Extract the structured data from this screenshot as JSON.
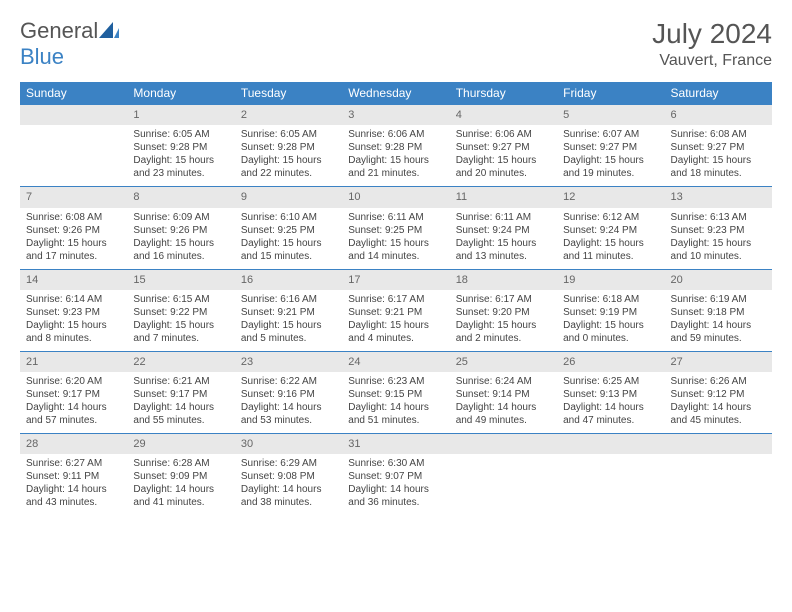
{
  "brand": {
    "name_part1": "General",
    "name_part2": "Blue"
  },
  "title": "July 2024",
  "location": "Vauvert, France",
  "colors": {
    "header_bg": "#3b82c4",
    "header_text": "#ffffff",
    "daynum_bg": "#e8e8e8",
    "daynum_text": "#666666",
    "body_text": "#444444",
    "rule": "#3b82c4"
  },
  "weekdays": [
    "Sunday",
    "Monday",
    "Tuesday",
    "Wednesday",
    "Thursday",
    "Friday",
    "Saturday"
  ],
  "weeks": [
    [
      null,
      {
        "n": "1",
        "sunrise": "Sunrise: 6:05 AM",
        "sunset": "Sunset: 9:28 PM",
        "day1": "Daylight: 15 hours",
        "day2": "and 23 minutes."
      },
      {
        "n": "2",
        "sunrise": "Sunrise: 6:05 AM",
        "sunset": "Sunset: 9:28 PM",
        "day1": "Daylight: 15 hours",
        "day2": "and 22 minutes."
      },
      {
        "n": "3",
        "sunrise": "Sunrise: 6:06 AM",
        "sunset": "Sunset: 9:28 PM",
        "day1": "Daylight: 15 hours",
        "day2": "and 21 minutes."
      },
      {
        "n": "4",
        "sunrise": "Sunrise: 6:06 AM",
        "sunset": "Sunset: 9:27 PM",
        "day1": "Daylight: 15 hours",
        "day2": "and 20 minutes."
      },
      {
        "n": "5",
        "sunrise": "Sunrise: 6:07 AM",
        "sunset": "Sunset: 9:27 PM",
        "day1": "Daylight: 15 hours",
        "day2": "and 19 minutes."
      },
      {
        "n": "6",
        "sunrise": "Sunrise: 6:08 AM",
        "sunset": "Sunset: 9:27 PM",
        "day1": "Daylight: 15 hours",
        "day2": "and 18 minutes."
      }
    ],
    [
      {
        "n": "7",
        "sunrise": "Sunrise: 6:08 AM",
        "sunset": "Sunset: 9:26 PM",
        "day1": "Daylight: 15 hours",
        "day2": "and 17 minutes."
      },
      {
        "n": "8",
        "sunrise": "Sunrise: 6:09 AM",
        "sunset": "Sunset: 9:26 PM",
        "day1": "Daylight: 15 hours",
        "day2": "and 16 minutes."
      },
      {
        "n": "9",
        "sunrise": "Sunrise: 6:10 AM",
        "sunset": "Sunset: 9:25 PM",
        "day1": "Daylight: 15 hours",
        "day2": "and 15 minutes."
      },
      {
        "n": "10",
        "sunrise": "Sunrise: 6:11 AM",
        "sunset": "Sunset: 9:25 PM",
        "day1": "Daylight: 15 hours",
        "day2": "and 14 minutes."
      },
      {
        "n": "11",
        "sunrise": "Sunrise: 6:11 AM",
        "sunset": "Sunset: 9:24 PM",
        "day1": "Daylight: 15 hours",
        "day2": "and 13 minutes."
      },
      {
        "n": "12",
        "sunrise": "Sunrise: 6:12 AM",
        "sunset": "Sunset: 9:24 PM",
        "day1": "Daylight: 15 hours",
        "day2": "and 11 minutes."
      },
      {
        "n": "13",
        "sunrise": "Sunrise: 6:13 AM",
        "sunset": "Sunset: 9:23 PM",
        "day1": "Daylight: 15 hours",
        "day2": "and 10 minutes."
      }
    ],
    [
      {
        "n": "14",
        "sunrise": "Sunrise: 6:14 AM",
        "sunset": "Sunset: 9:23 PM",
        "day1": "Daylight: 15 hours",
        "day2": "and 8 minutes."
      },
      {
        "n": "15",
        "sunrise": "Sunrise: 6:15 AM",
        "sunset": "Sunset: 9:22 PM",
        "day1": "Daylight: 15 hours",
        "day2": "and 7 minutes."
      },
      {
        "n": "16",
        "sunrise": "Sunrise: 6:16 AM",
        "sunset": "Sunset: 9:21 PM",
        "day1": "Daylight: 15 hours",
        "day2": "and 5 minutes."
      },
      {
        "n": "17",
        "sunrise": "Sunrise: 6:17 AM",
        "sunset": "Sunset: 9:21 PM",
        "day1": "Daylight: 15 hours",
        "day2": "and 4 minutes."
      },
      {
        "n": "18",
        "sunrise": "Sunrise: 6:17 AM",
        "sunset": "Sunset: 9:20 PM",
        "day1": "Daylight: 15 hours",
        "day2": "and 2 minutes."
      },
      {
        "n": "19",
        "sunrise": "Sunrise: 6:18 AM",
        "sunset": "Sunset: 9:19 PM",
        "day1": "Daylight: 15 hours",
        "day2": "and 0 minutes."
      },
      {
        "n": "20",
        "sunrise": "Sunrise: 6:19 AM",
        "sunset": "Sunset: 9:18 PM",
        "day1": "Daylight: 14 hours",
        "day2": "and 59 minutes."
      }
    ],
    [
      {
        "n": "21",
        "sunrise": "Sunrise: 6:20 AM",
        "sunset": "Sunset: 9:17 PM",
        "day1": "Daylight: 14 hours",
        "day2": "and 57 minutes."
      },
      {
        "n": "22",
        "sunrise": "Sunrise: 6:21 AM",
        "sunset": "Sunset: 9:17 PM",
        "day1": "Daylight: 14 hours",
        "day2": "and 55 minutes."
      },
      {
        "n": "23",
        "sunrise": "Sunrise: 6:22 AM",
        "sunset": "Sunset: 9:16 PM",
        "day1": "Daylight: 14 hours",
        "day2": "and 53 minutes."
      },
      {
        "n": "24",
        "sunrise": "Sunrise: 6:23 AM",
        "sunset": "Sunset: 9:15 PM",
        "day1": "Daylight: 14 hours",
        "day2": "and 51 minutes."
      },
      {
        "n": "25",
        "sunrise": "Sunrise: 6:24 AM",
        "sunset": "Sunset: 9:14 PM",
        "day1": "Daylight: 14 hours",
        "day2": "and 49 minutes."
      },
      {
        "n": "26",
        "sunrise": "Sunrise: 6:25 AM",
        "sunset": "Sunset: 9:13 PM",
        "day1": "Daylight: 14 hours",
        "day2": "and 47 minutes."
      },
      {
        "n": "27",
        "sunrise": "Sunrise: 6:26 AM",
        "sunset": "Sunset: 9:12 PM",
        "day1": "Daylight: 14 hours",
        "day2": "and 45 minutes."
      }
    ],
    [
      {
        "n": "28",
        "sunrise": "Sunrise: 6:27 AM",
        "sunset": "Sunset: 9:11 PM",
        "day1": "Daylight: 14 hours",
        "day2": "and 43 minutes."
      },
      {
        "n": "29",
        "sunrise": "Sunrise: 6:28 AM",
        "sunset": "Sunset: 9:09 PM",
        "day1": "Daylight: 14 hours",
        "day2": "and 41 minutes."
      },
      {
        "n": "30",
        "sunrise": "Sunrise: 6:29 AM",
        "sunset": "Sunset: 9:08 PM",
        "day1": "Daylight: 14 hours",
        "day2": "and 38 minutes."
      },
      {
        "n": "31",
        "sunrise": "Sunrise: 6:30 AM",
        "sunset": "Sunset: 9:07 PM",
        "day1": "Daylight: 14 hours",
        "day2": "and 36 minutes."
      },
      null,
      null,
      null
    ]
  ]
}
